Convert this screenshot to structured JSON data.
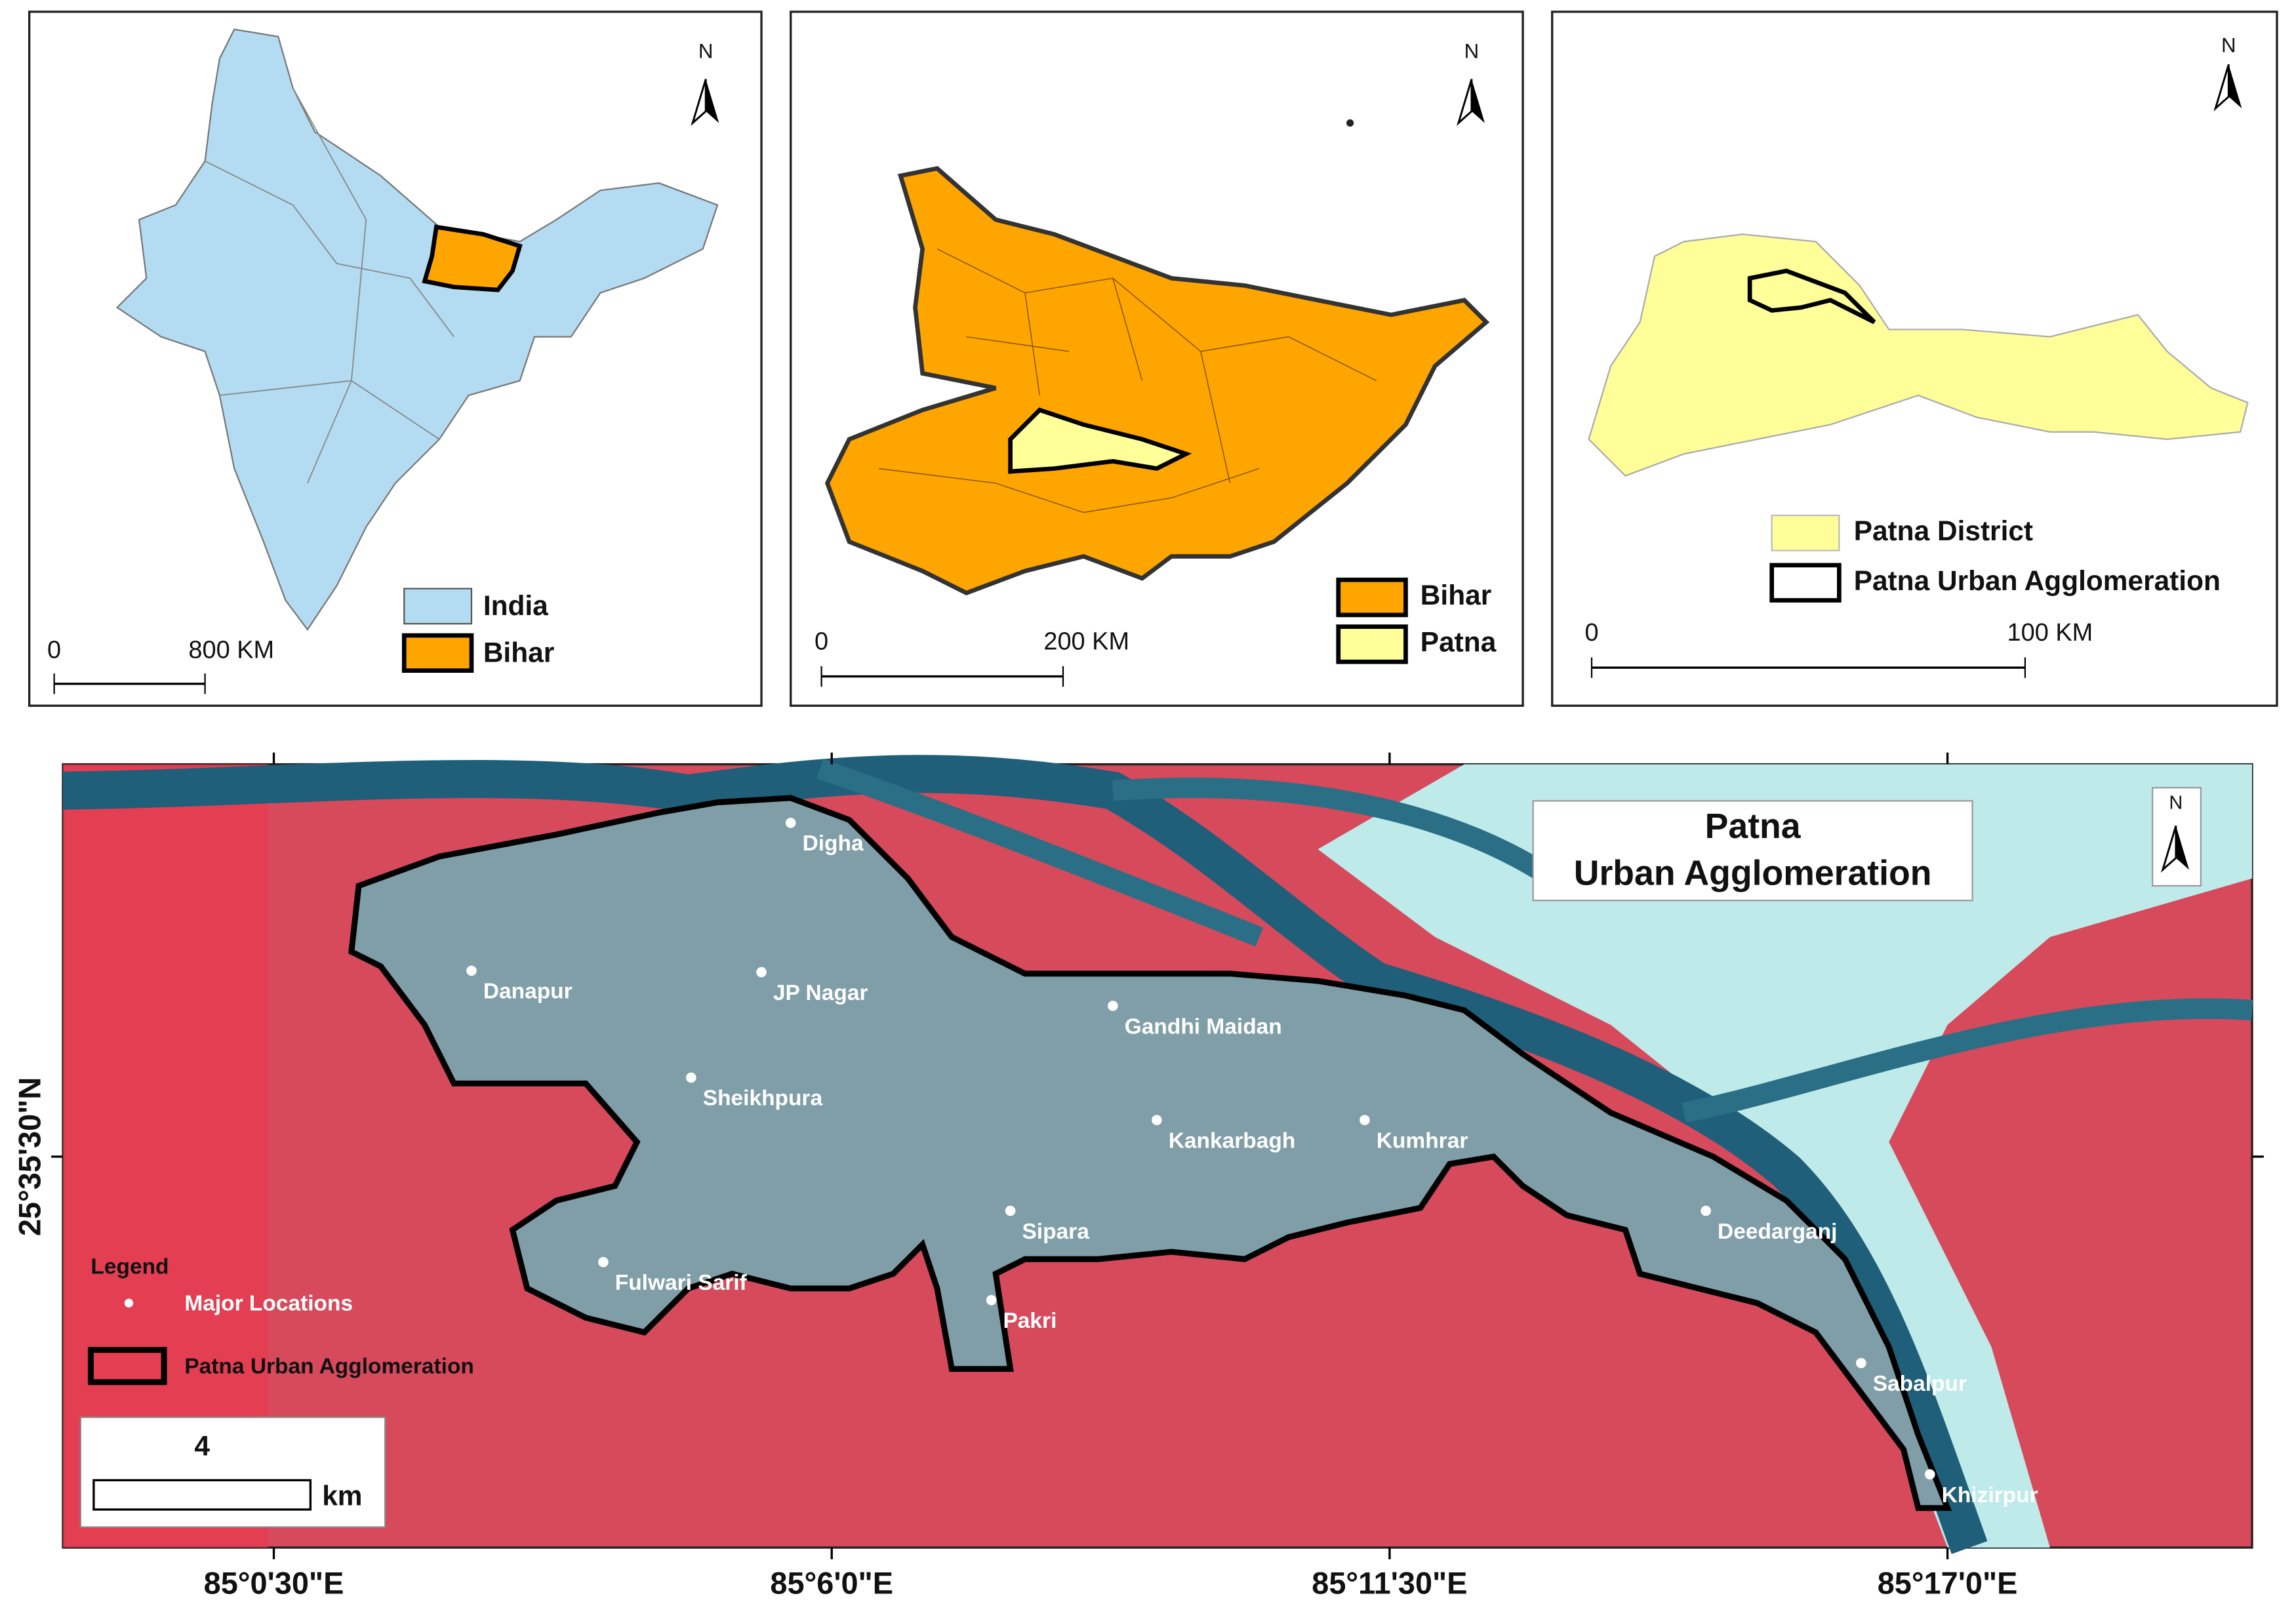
{
  "insets": [
    {
      "north": "N",
      "legend": [
        "India",
        "Bihar"
      ],
      "scale": {
        "start": "0",
        "end": "800 KM"
      }
    },
    {
      "north": "N",
      "legend": [
        "Bihar",
        "Patna"
      ],
      "scale": {
        "start": "0",
        "end": "200 KM"
      }
    },
    {
      "north": "N",
      "legend": [
        "Patna District",
        "Patna Urban Agglomeration"
      ],
      "scale": {
        "start": "0",
        "end": "100 KM"
      }
    }
  ],
  "main_map": {
    "title": [
      "Patna",
      "Urban Agglomeration"
    ],
    "north": "N",
    "locations": [
      "Digha",
      "Danapur",
      "JP Nagar",
      "Gandhi Maidan",
      "Sheikhpura",
      "Kankarbagh",
      "Kumhrar",
      "Sipara",
      "Deedarganj",
      "Fulwari Sarif",
      "Pakri",
      "Sabalpur",
      "Khizirpur"
    ],
    "legend": {
      "title": "Legend",
      "items": [
        "Major Locations",
        "Patna Urban Agglomeration"
      ]
    },
    "scale": {
      "value": "4",
      "unit": "km"
    },
    "x_labels": [
      "85°0'30\"E",
      "85°6'0\"E",
      "85°11'30\"E",
      "85°17'0\"E"
    ],
    "y_label": "25°35'30\"N"
  }
}
